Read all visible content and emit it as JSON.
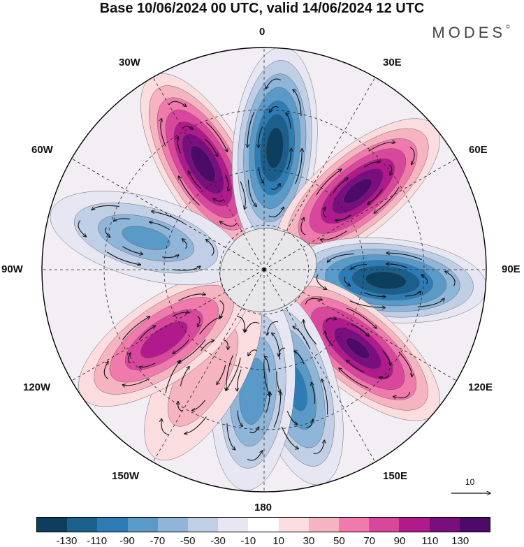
{
  "title": "Base 10/06/2024 00 UTC, valid 14/06/2024 12 UTC",
  "logo": "MODES",
  "logo_mark": "©",
  "longitude_labels": {
    "lon_0": "0",
    "lon_30e": "30E",
    "lon_60e": "60E",
    "lon_90e": "90E",
    "lon_120e": "120E",
    "lon_150e": "150E",
    "lon_180": "180",
    "lon_150w": "150W",
    "lon_120w": "120W",
    "lon_90w": "90W",
    "lon_60w": "60W",
    "lon_30w": "30W"
  },
  "reference_vector": "10",
  "colorbar": {
    "colors": [
      "#0c3e5e",
      "#1b5f8c",
      "#2d7cb5",
      "#5a9ac9",
      "#8fb5d9",
      "#c1cfe6",
      "#e6e7f2",
      "#ffffff",
      "#fbdde0",
      "#f6b3c0",
      "#f07aab",
      "#d8479c",
      "#b01a8c",
      "#7b0e7e",
      "#4d0a6b"
    ],
    "tick_labels": [
      "-130",
      "-110",
      "-90",
      "-70",
      "-50",
      "-30",
      "-10",
      "10",
      "30",
      "50",
      "70",
      "90",
      "110",
      "130"
    ]
  },
  "projection": "polar-stereographic-south",
  "anomaly_centers": [
    {
      "sign": "positive",
      "lon": -30,
      "strength": 140
    },
    {
      "sign": "negative",
      "lon": 5,
      "strength": -140
    },
    {
      "sign": "positive",
      "lon": 50,
      "strength": 135
    },
    {
      "sign": "negative",
      "lon": 95,
      "strength": -140
    },
    {
      "sign": "positive",
      "lon": 130,
      "strength": 130
    },
    {
      "sign": "negative",
      "lon": 165,
      "strength": -95
    },
    {
      "sign": "negative",
      "lon": -175,
      "strength": -80
    },
    {
      "sign": "positive",
      "lon": -150,
      "strength": 40
    },
    {
      "sign": "positive",
      "lon": -125,
      "strength": 100
    },
    {
      "sign": "negative",
      "lon": -75,
      "strength": -70
    }
  ]
}
